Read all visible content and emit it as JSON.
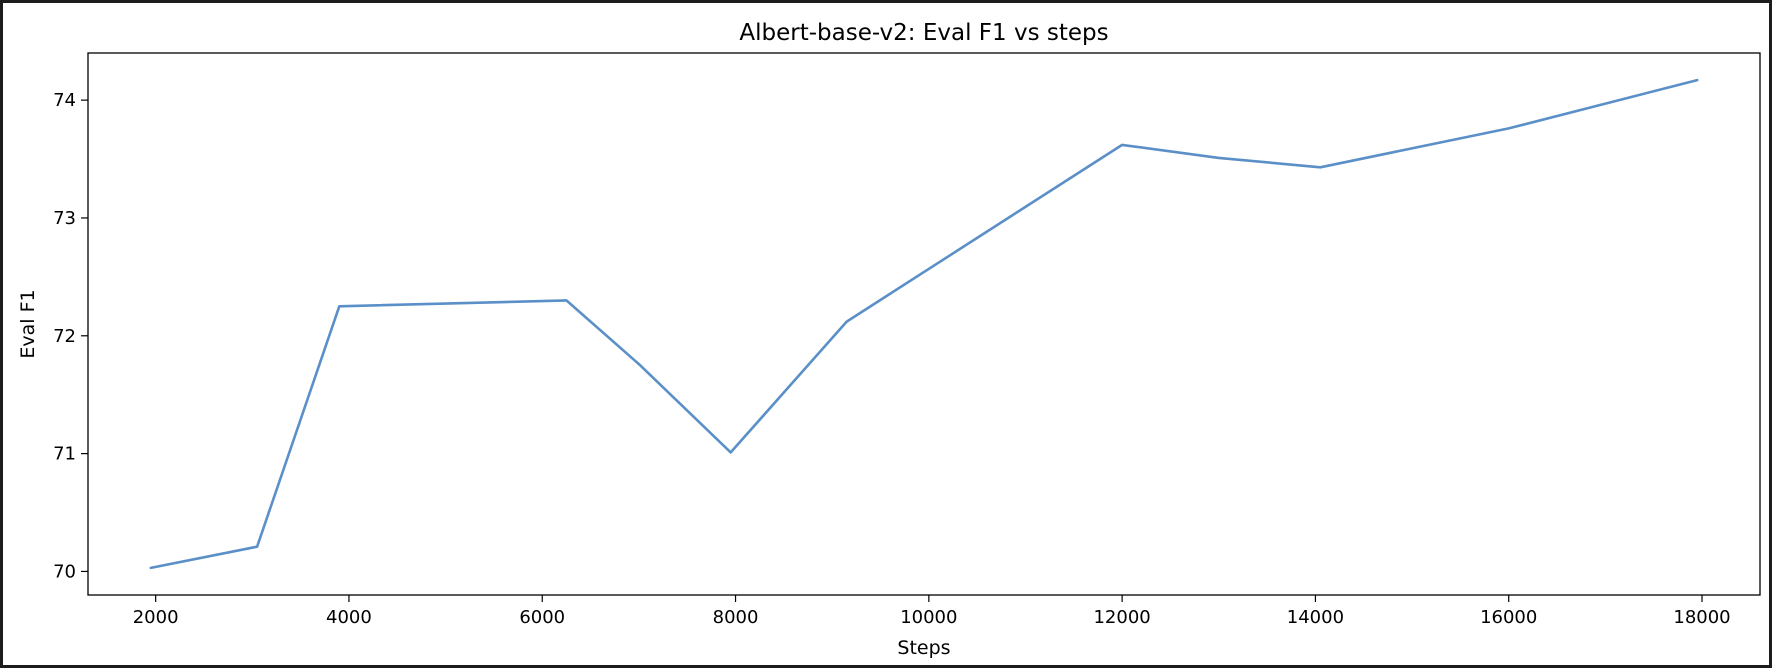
{
  "chart_data": {
    "type": "line",
    "title": "Albert-base-v2: Eval F1 vs steps",
    "xlabel": "Steps",
    "ylabel": "Eval F1",
    "xlim": [
      1300,
      18600
    ],
    "ylim": [
      69.8,
      74.4
    ],
    "xticks": [
      2000,
      4000,
      6000,
      8000,
      10000,
      12000,
      14000,
      16000,
      18000
    ],
    "yticks": [
      70,
      71,
      72,
      73,
      74
    ],
    "grid": false,
    "legend": "none",
    "line_color": "#5b8fc7",
    "series": [
      {
        "x": [
          1950,
          3050,
          3900,
          6250,
          7000,
          7950,
          9150,
          10100,
          12000,
          13000,
          14050,
          16000,
          17950
        ],
        "y": [
          70.03,
          70.21,
          72.25,
          72.3,
          71.76,
          71.01,
          72.12,
          72.62,
          73.62,
          73.51,
          73.43,
          73.76,
          74.17
        ]
      }
    ]
  }
}
